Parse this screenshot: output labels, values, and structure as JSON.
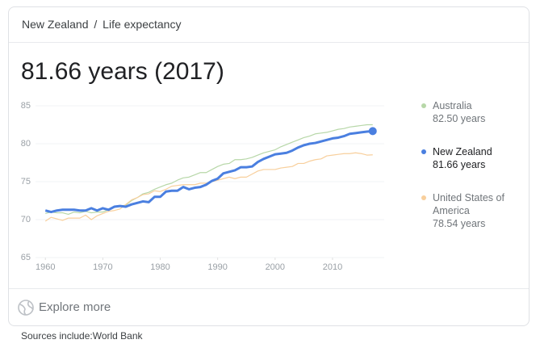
{
  "breadcrumb": {
    "country": "New Zealand",
    "separator": "/",
    "topic": "Life expectancy"
  },
  "headline": "81.66 years (2017)",
  "chart_data": {
    "type": "line",
    "x": [
      1960,
      1961,
      1962,
      1963,
      1964,
      1965,
      1966,
      1967,
      1968,
      1969,
      1970,
      1971,
      1972,
      1973,
      1974,
      1975,
      1976,
      1977,
      1978,
      1979,
      1980,
      1981,
      1982,
      1983,
      1984,
      1985,
      1986,
      1987,
      1988,
      1989,
      1990,
      1991,
      1992,
      1993,
      1994,
      1995,
      1996,
      1997,
      1998,
      1999,
      2000,
      2001,
      2002,
      2003,
      2004,
      2005,
      2006,
      2007,
      2008,
      2009,
      2010,
      2011,
      2012,
      2013,
      2014,
      2015,
      2016,
      2017
    ],
    "series": [
      {
        "name": "Australia",
        "latest": "82.50 years",
        "color": "#b7d7a8",
        "width": 1.2,
        "emphasis": false,
        "values": [
          70.8,
          71.0,
          70.9,
          70.9,
          70.7,
          71.0,
          70.9,
          71.1,
          70.9,
          71.0,
          71.0,
          71.3,
          71.6,
          71.8,
          71.9,
          72.5,
          72.9,
          73.4,
          73.6,
          74.0,
          74.3,
          74.6,
          74.8,
          75.2,
          75.5,
          75.6,
          75.9,
          76.2,
          76.2,
          76.6,
          77.0,
          77.3,
          77.4,
          77.9,
          77.9,
          78.0,
          78.2,
          78.5,
          78.8,
          79.0,
          79.2,
          79.6,
          79.9,
          80.2,
          80.5,
          80.8,
          81.0,
          81.3,
          81.4,
          81.5,
          81.7,
          81.9,
          82.0,
          82.2,
          82.3,
          82.4,
          82.5,
          82.5
        ]
      },
      {
        "name": "New Zealand",
        "latest": "81.66 years",
        "color": "#4a7fe0",
        "width": 3,
        "emphasis": true,
        "values": [
          71.2,
          71.0,
          71.2,
          71.3,
          71.3,
          71.3,
          71.2,
          71.2,
          71.5,
          71.2,
          71.5,
          71.3,
          71.7,
          71.8,
          71.7,
          72.0,
          72.2,
          72.4,
          72.3,
          73.0,
          73.0,
          73.7,
          73.8,
          73.8,
          74.3,
          74.0,
          74.2,
          74.3,
          74.6,
          75.1,
          75.4,
          76.1,
          76.3,
          76.5,
          76.9,
          76.9,
          77.0,
          77.6,
          78.0,
          78.3,
          78.6,
          78.7,
          78.8,
          79.1,
          79.5,
          79.8,
          80.0,
          80.1,
          80.3,
          80.5,
          80.7,
          80.8,
          81.0,
          81.3,
          81.4,
          81.5,
          81.6,
          81.66
        ]
      },
      {
        "name": "United States of America",
        "latest": "78.54 years",
        "color": "#f8cf9c",
        "width": 1.2,
        "emphasis": false,
        "values": [
          69.8,
          70.3,
          70.1,
          69.9,
          70.2,
          70.2,
          70.2,
          70.6,
          70.0,
          70.5,
          70.8,
          71.1,
          71.2,
          71.4,
          72.0,
          72.6,
          72.9,
          73.3,
          73.4,
          73.8,
          73.7,
          74.0,
          74.4,
          74.5,
          74.6,
          74.6,
          74.6,
          74.8,
          74.8,
          75.0,
          75.2,
          75.4,
          75.6,
          75.4,
          75.6,
          75.6,
          76.0,
          76.4,
          76.6,
          76.6,
          76.6,
          76.8,
          76.9,
          77.0,
          77.4,
          77.4,
          77.7,
          77.9,
          78.0,
          78.4,
          78.5,
          78.6,
          78.7,
          78.7,
          78.8,
          78.7,
          78.5,
          78.54
        ]
      }
    ],
    "xlim": [
      1958,
      2019
    ],
    "xticks": [
      1960,
      1970,
      1980,
      1990,
      2000,
      2010
    ],
    "ylim": [
      65,
      85
    ],
    "yticks": [
      65,
      70,
      75,
      80,
      85
    ],
    "grid": true
  },
  "footer": {
    "explore": "Explore more",
    "sources": "Sources include:World Bank"
  }
}
